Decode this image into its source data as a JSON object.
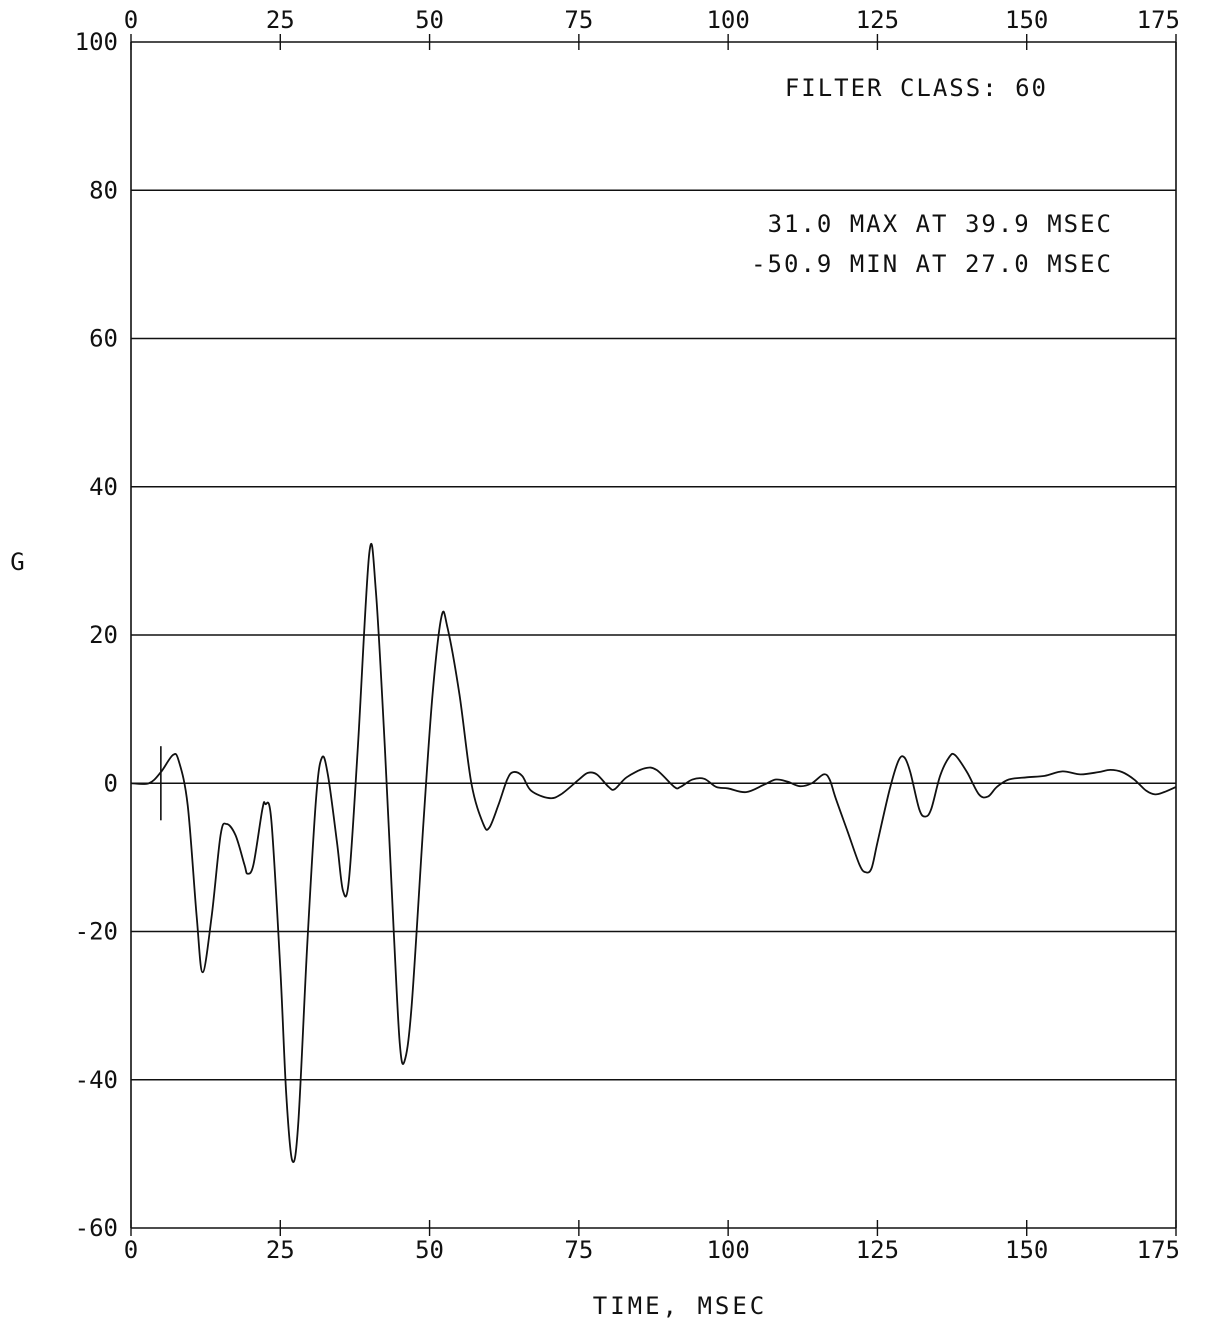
{
  "chart_data": {
    "type": "line",
    "title": "",
    "xlabel": "TIME, MSEC",
    "ylabel": "G",
    "xlim": [
      0,
      175
    ],
    "ylim": [
      -60,
      100
    ],
    "x_ticks": [
      0,
      25,
      50,
      75,
      100,
      125,
      150,
      175
    ],
    "x_tick_labels": [
      "0",
      "25",
      "50",
      "75",
      "100",
      "125",
      "150",
      "175"
    ],
    "y_ticks": [
      -60,
      -40,
      -20,
      0,
      20,
      40,
      60,
      80,
      100
    ],
    "y_tick_labels": [
      "-60",
      "-40",
      "-20",
      "0",
      "20",
      "40",
      "60",
      "80",
      "100"
    ],
    "grid": "horizontal",
    "annotations": {
      "filter": "FILTER CLASS: 60",
      "max": "31.0 MAX AT 39.9 MSEC",
      "min": "-50.9 MIN AT 27.0 MSEC"
    },
    "marker": {
      "x": 5,
      "y_top": 5,
      "y_bottom": -5
    },
    "series": [
      {
        "values": [
          [
            0,
            0
          ],
          [
            3,
            0
          ],
          [
            5,
            1.5
          ],
          [
            7,
            3.8
          ],
          [
            8,
            3
          ],
          [
            9.5,
            -3
          ],
          [
            11,
            -18
          ],
          [
            12,
            -25.5
          ],
          [
            13.5,
            -18
          ],
          [
            15,
            -7
          ],
          [
            16,
            -5.5
          ],
          [
            17.5,
            -7
          ],
          [
            19,
            -11
          ],
          [
            19.5,
            -12.2
          ],
          [
            20.5,
            -11
          ],
          [
            22,
            -3.5
          ],
          [
            22.5,
            -2.8
          ],
          [
            23.5,
            -5
          ],
          [
            25,
            -25
          ],
          [
            26,
            -42
          ],
          [
            27,
            -50.9
          ],
          [
            28,
            -46
          ],
          [
            29.5,
            -22
          ],
          [
            31,
            -2
          ],
          [
            32,
            3.5
          ],
          [
            33,
            1
          ],
          [
            34.5,
            -8
          ],
          [
            35.5,
            -14.5
          ],
          [
            36.5,
            -13
          ],
          [
            38,
            5
          ],
          [
            39.9,
            31
          ],
          [
            41,
            26
          ],
          [
            42.5,
            5
          ],
          [
            44,
            -20
          ],
          [
            45,
            -35
          ],
          [
            45.8,
            -37.5
          ],
          [
            47,
            -30
          ],
          [
            49,
            -5
          ],
          [
            50.5,
            12
          ],
          [
            52,
            22.5
          ],
          [
            53,
            21
          ],
          [
            55,
            12
          ],
          [
            57,
            0
          ],
          [
            59,
            -5.5
          ],
          [
            60,
            -6
          ],
          [
            61.5,
            -3
          ],
          [
            63,
            0.5
          ],
          [
            64,
            1.5
          ],
          [
            65.5,
            1
          ],
          [
            67,
            -1
          ],
          [
            70,
            -2
          ],
          [
            72,
            -1.5
          ],
          [
            75,
            0.5
          ],
          [
            76.5,
            1.4
          ],
          [
            78,
            1.2
          ],
          [
            80,
            -0.5
          ],
          [
            81,
            -0.8
          ],
          [
            83,
            0.8
          ],
          [
            86,
            2
          ],
          [
            88,
            1.8
          ],
          [
            91,
            -0.5
          ],
          [
            92,
            -0.5
          ],
          [
            94,
            0.5
          ],
          [
            96,
            0.6
          ],
          [
            98,
            -0.5
          ],
          [
            100,
            -0.7
          ],
          [
            103,
            -1.2
          ],
          [
            106,
            -0.2
          ],
          [
            108,
            0.5
          ],
          [
            110,
            0.2
          ],
          [
            112,
            -0.4
          ],
          [
            114,
            0
          ],
          [
            116,
            1.2
          ],
          [
            117,
            0.5
          ],
          [
            118,
            -2
          ],
          [
            120,
            -6.5
          ],
          [
            122,
            -11
          ],
          [
            123,
            -12
          ],
          [
            124,
            -11.5
          ],
          [
            125,
            -8
          ],
          [
            127,
            -1
          ],
          [
            128.5,
            3
          ],
          [
            129.5,
            3.5
          ],
          [
            130.5,
            1.5
          ],
          [
            132,
            -3.5
          ],
          [
            133,
            -4.5
          ],
          [
            134,
            -3.5
          ],
          [
            135.5,
            1
          ],
          [
            137,
            3.5
          ],
          [
            138,
            3.8
          ],
          [
            140,
            1.5
          ],
          [
            142,
            -1.5
          ],
          [
            143.5,
            -1.8
          ],
          [
            145,
            -0.5
          ],
          [
            147,
            0.5
          ],
          [
            150,
            0.8
          ],
          [
            153,
            1
          ],
          [
            156,
            1.6
          ],
          [
            159,
            1.2
          ],
          [
            162,
            1.5
          ],
          [
            164,
            1.8
          ],
          [
            166,
            1.5
          ],
          [
            168,
            0.5
          ],
          [
            170,
            -1
          ],
          [
            171.5,
            -1.5
          ],
          [
            173,
            -1.2
          ],
          [
            175,
            -0.5
          ]
        ]
      }
    ]
  },
  "colors": {
    "ink": "#111111",
    "background": "#ffffff"
  }
}
